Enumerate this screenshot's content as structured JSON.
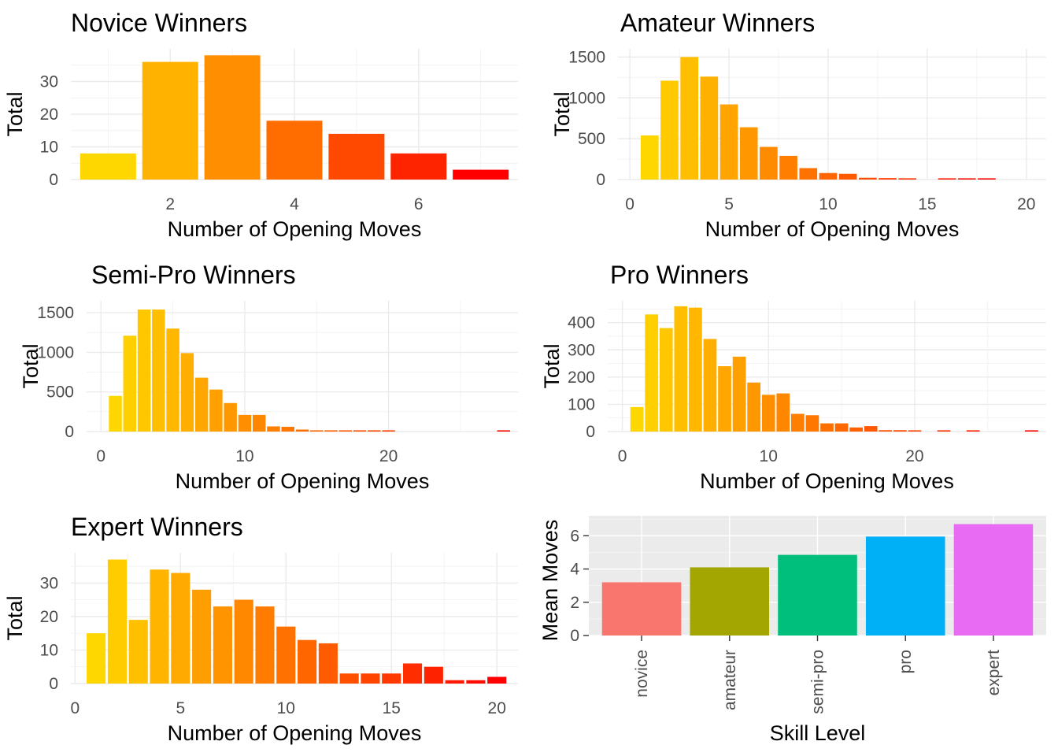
{
  "chart_data": [
    {
      "id": "novice",
      "type": "bar",
      "title": "Novice Winners",
      "xlabel": "Number of Opening Moves",
      "ylabel": "Total",
      "x": [
        1,
        2,
        3,
        4,
        5,
        6,
        7
      ],
      "values": [
        8,
        36,
        38,
        18,
        14,
        8,
        3
      ],
      "xlim": [
        0.4,
        7.6
      ],
      "ylim": [
        0,
        40
      ],
      "xticks": [
        2,
        4,
        6
      ],
      "yticks": [
        0,
        10,
        20,
        30
      ],
      "grid": true
    },
    {
      "id": "amateur",
      "type": "bar",
      "title": "Amateur Winners",
      "xlabel": "Number of Opening Moves",
      "ylabel": "Total",
      "x": [
        1,
        2,
        3,
        4,
        5,
        6,
        7,
        8,
        9,
        10,
        11,
        12,
        13,
        14,
        15,
        16,
        17,
        18
      ],
      "values": [
        540,
        1210,
        1500,
        1260,
        920,
        640,
        400,
        290,
        140,
        80,
        70,
        22,
        18,
        8,
        0,
        4,
        5,
        4
      ],
      "xlim": [
        -0.6,
        21
      ],
      "ylim": [
        0,
        1600
      ],
      "xticks": [
        0,
        5,
        10,
        15,
        20
      ],
      "yticks": [
        0,
        500,
        1000,
        1500
      ],
      "grid": true
    },
    {
      "id": "semi-pro",
      "type": "bar",
      "title": "Semi-Pro Winners",
      "xlabel": "Number of Opening Moves",
      "ylabel": "Total",
      "x": [
        1,
        2,
        3,
        4,
        5,
        6,
        7,
        8,
        9,
        10,
        11,
        12,
        13,
        14,
        15,
        16,
        17,
        18,
        19,
        20,
        28
      ],
      "values": [
        450,
        1210,
        1540,
        1540,
        1300,
        990,
        680,
        530,
        360,
        210,
        210,
        65,
        60,
        25,
        15,
        10,
        10,
        8,
        8,
        5,
        6
      ],
      "xlim": [
        -1,
        29
      ],
      "ylim": [
        0,
        1650
      ],
      "xticks": [
        0,
        10,
        20
      ],
      "yticks": [
        0,
        500,
        1000,
        1500
      ],
      "grid": true
    },
    {
      "id": "pro",
      "type": "bar",
      "title": "Pro Winners",
      "xlabel": "Number of Opening Moves",
      "ylabel": "Total",
      "x": [
        1,
        2,
        3,
        4,
        5,
        6,
        7,
        8,
        9,
        10,
        11,
        12,
        13,
        14,
        15,
        16,
        17,
        18,
        19,
        20,
        22,
        24,
        28
      ],
      "values": [
        90,
        430,
        380,
        460,
        455,
        340,
        240,
        275,
        180,
        135,
        140,
        65,
        60,
        30,
        30,
        15,
        20,
        5,
        5,
        3,
        2,
        2,
        2
      ],
      "xlim": [
        -1,
        29
      ],
      "ylim": [
        0,
        480
      ],
      "xticks": [
        0,
        10,
        20
      ],
      "yticks": [
        0,
        100,
        200,
        300,
        400
      ],
      "grid": true
    },
    {
      "id": "expert",
      "type": "bar",
      "title": "Expert Winners",
      "xlabel": "Number of Opening Moves",
      "ylabel": "Total",
      "x": [
        1,
        2,
        3,
        4,
        5,
        6,
        7,
        8,
        9,
        10,
        11,
        12,
        13,
        14,
        15,
        16,
        17,
        18,
        19,
        20
      ],
      "values": [
        15,
        37,
        19,
        34,
        33,
        28,
        23,
        25,
        23,
        17,
        13,
        12,
        3,
        3,
        3,
        6,
        5,
        1,
        1,
        2
      ],
      "xlim": [
        -0.2,
        21
      ],
      "ylim": [
        0,
        39
      ],
      "xticks": [
        0,
        5,
        10,
        15,
        20
      ],
      "yticks": [
        0,
        10,
        20,
        30
      ],
      "grid": true
    },
    {
      "id": "mean-moves",
      "type": "bar",
      "title": "",
      "xlabel": "Skill Level",
      "ylabel": "Mean Moves",
      "categories": [
        "novice",
        "amateur",
        "semi-pro",
        "pro",
        "expert"
      ],
      "values": [
        3.2,
        4.1,
        4.85,
        5.95,
        6.7
      ],
      "colors": [
        "#F8766D",
        "#A3A500",
        "#00BF7D",
        "#00B0F6",
        "#E76BF3"
      ],
      "ylim": [
        0,
        7.2
      ],
      "yticks": [
        0,
        2,
        4,
        6
      ],
      "grid": true
    }
  ]
}
